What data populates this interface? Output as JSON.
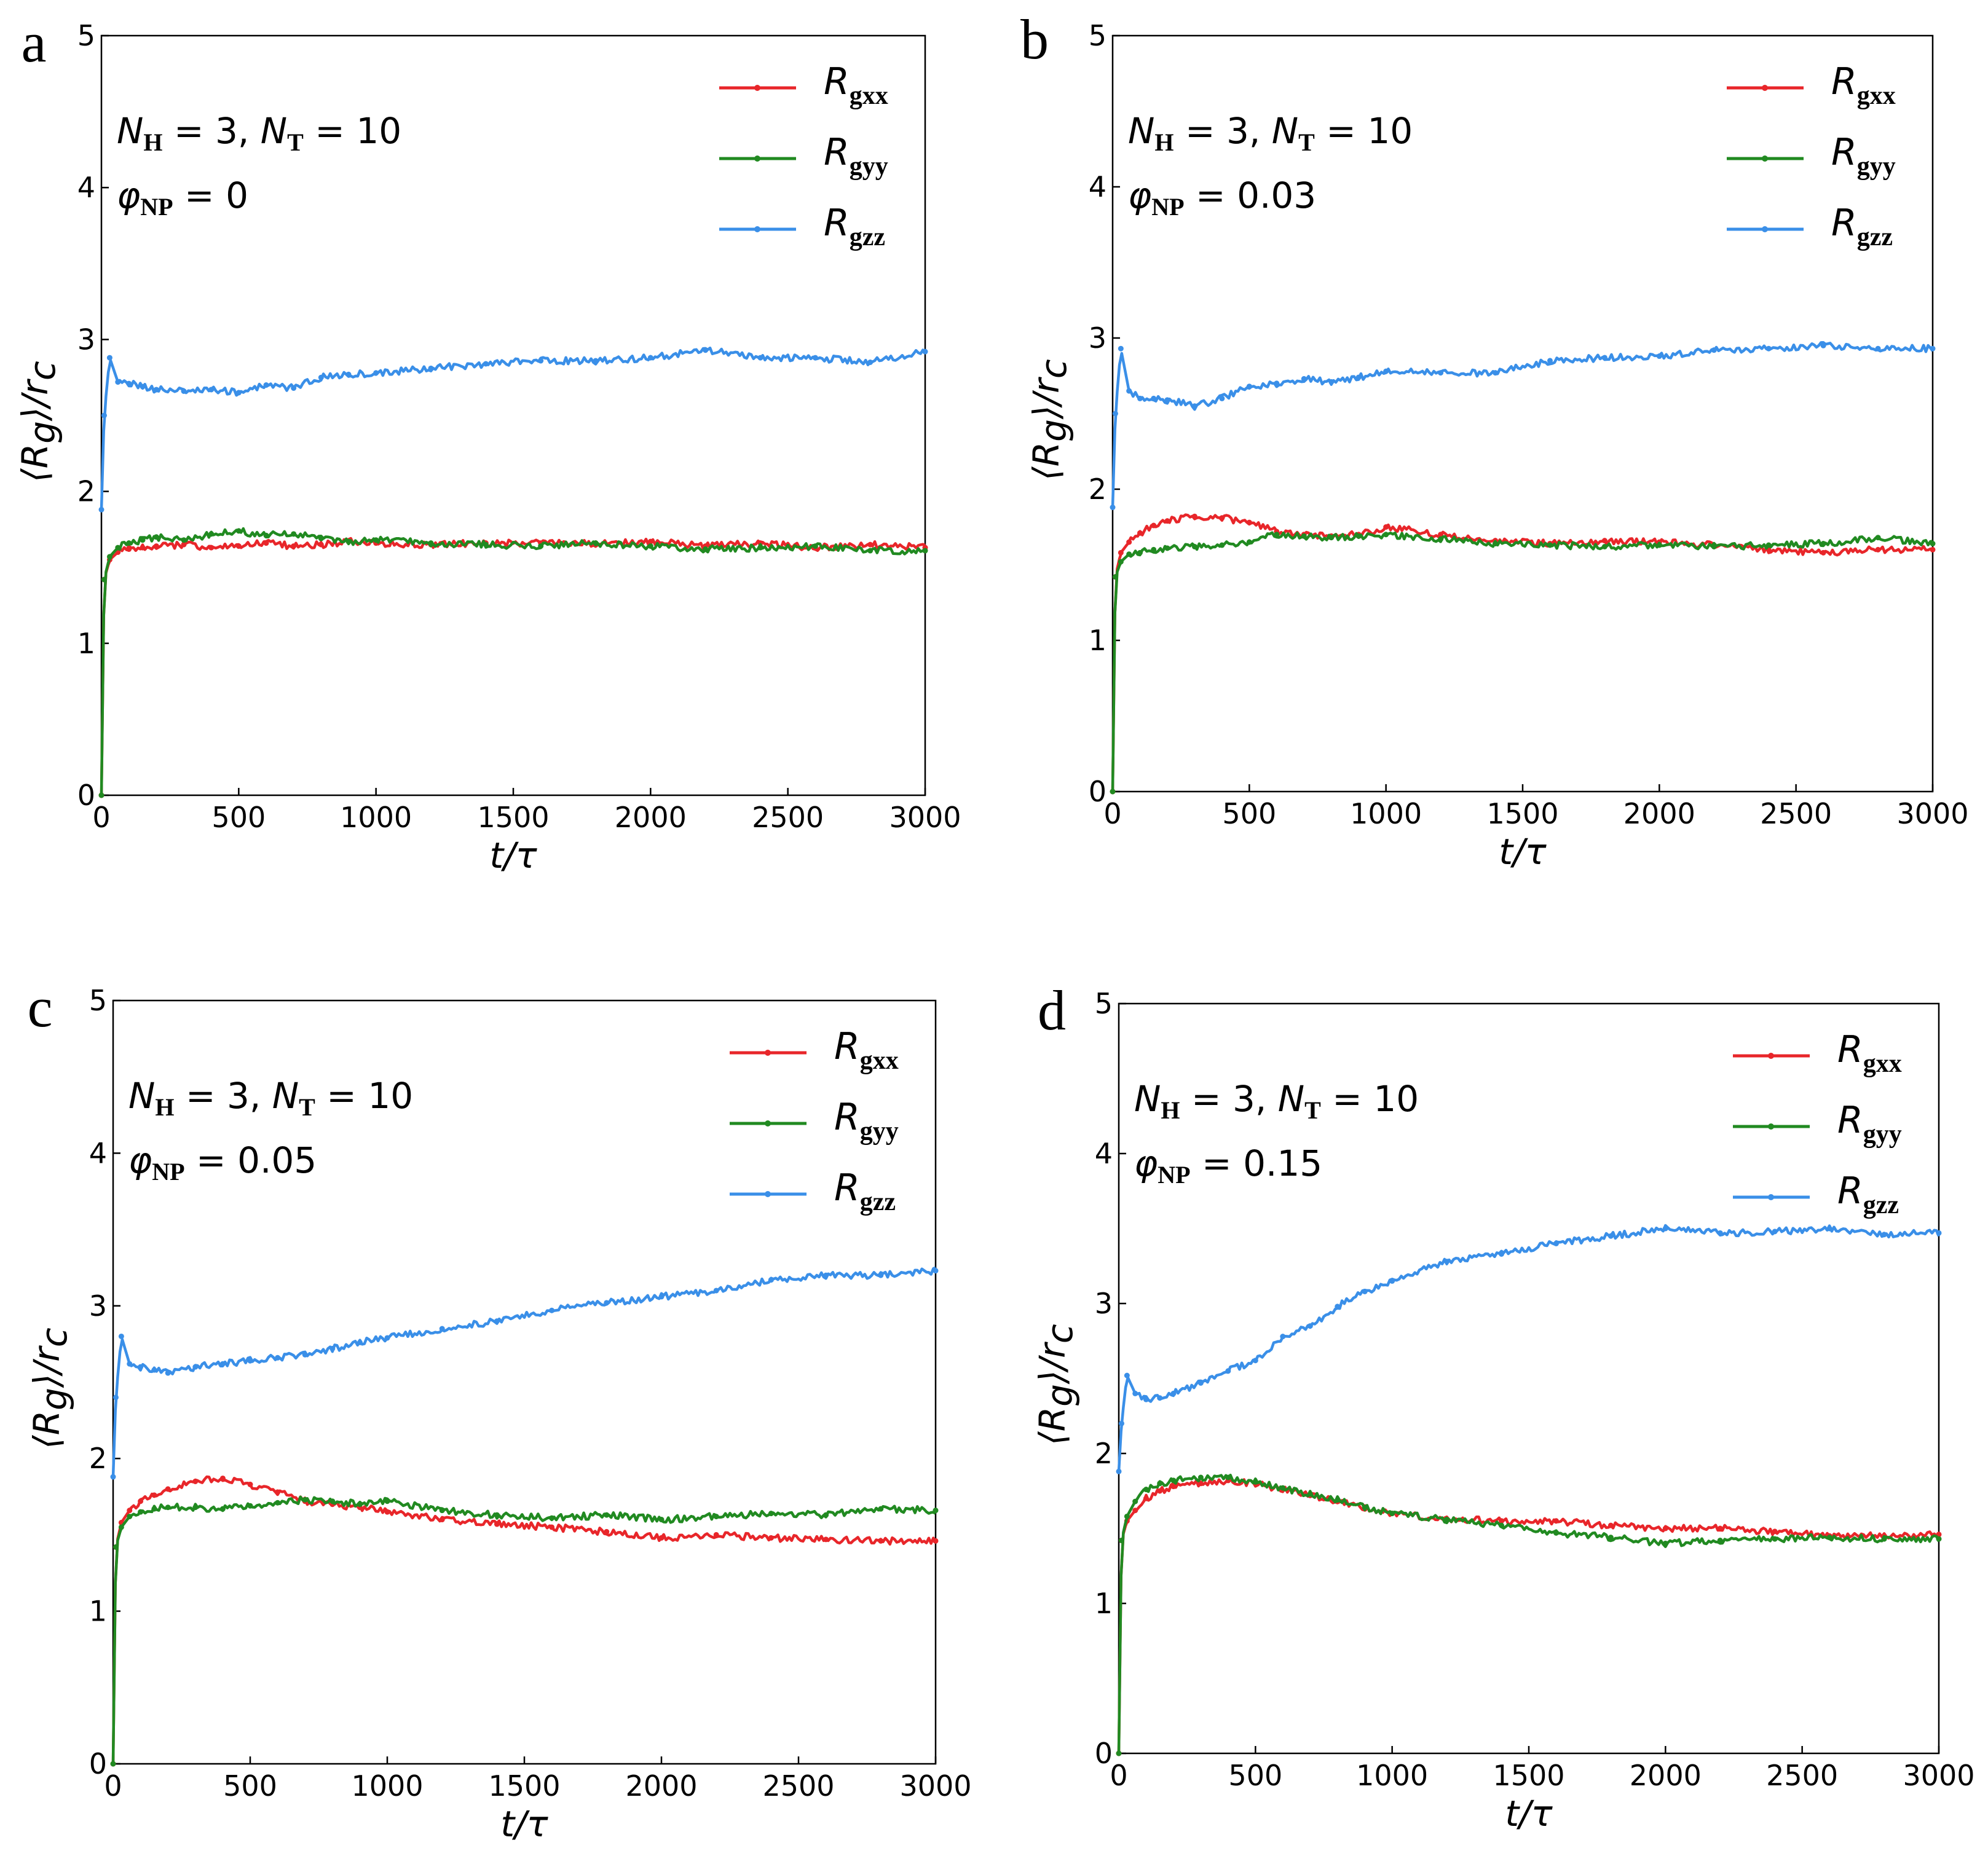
{
  "figure": {
    "ylabel": "⟨R_g⟩/r_c",
    "xlabel": "t/τ",
    "annotation_line1": "N_H = 3, N_T = 10"
  },
  "colors": {
    "Rgxx": "#e8262a",
    "Rgyy": "#218a21",
    "Rgzz": "#3a8fe8"
  },
  "chart_data": [
    {
      "panel": "a",
      "type": "line",
      "phi_text": "0",
      "xlim": [
        0,
        3000
      ],
      "ylim": [
        0,
        5
      ],
      "xticks": [
        "0",
        "500",
        "1000",
        "1500",
        "2000",
        "2500",
        "3000"
      ],
      "yticks": [
        "0",
        "1",
        "2",
        "3",
        "4",
        "5"
      ],
      "xlabel": "t/τ",
      "ylabel": "⟨R_g⟩/r_c",
      "legend": [
        "Rgxx",
        "Rgyy",
        "Rgzz"
      ],
      "x": [
        0,
        10,
        30,
        60,
        100,
        150,
        200,
        300,
        400,
        500,
        600,
        700,
        800,
        900,
        1000,
        1200,
        1400,
        1600,
        1800,
        2000,
        2200,
        2400,
        2600,
        2800,
        3000
      ],
      "series": [
        {
          "name": "Rgxx",
          "values": [
            0.0,
            1.42,
            1.55,
            1.6,
            1.62,
            1.63,
            1.64,
            1.65,
            1.63,
            1.64,
            1.66,
            1.64,
            1.65,
            1.67,
            1.66,
            1.65,
            1.66,
            1.66,
            1.66,
            1.67,
            1.64,
            1.66,
            1.63,
            1.65,
            1.63
          ]
        },
        {
          "name": "Rgyy",
          "values": [
            0.0,
            1.42,
            1.57,
            1.63,
            1.66,
            1.68,
            1.7,
            1.68,
            1.72,
            1.74,
            1.71,
            1.72,
            1.69,
            1.67,
            1.68,
            1.66,
            1.65,
            1.64,
            1.66,
            1.64,
            1.62,
            1.63,
            1.64,
            1.61,
            1.61
          ]
        },
        {
          "name": "Rgzz",
          "values": [
            1.88,
            2.5,
            2.88,
            2.72,
            2.71,
            2.69,
            2.67,
            2.66,
            2.67,
            2.65,
            2.7,
            2.68,
            2.75,
            2.77,
            2.78,
            2.81,
            2.84,
            2.86,
            2.86,
            2.88,
            2.93,
            2.88,
            2.88,
            2.85,
            2.92
          ]
        }
      ]
    },
    {
      "panel": "b",
      "type": "line",
      "phi_text": "0.03",
      "xlim": [
        0,
        3000
      ],
      "ylim": [
        0,
        5
      ],
      "xticks": [
        "0",
        "500",
        "1000",
        "1500",
        "2000",
        "2500",
        "3000"
      ],
      "yticks": [
        "0",
        "1",
        "2",
        "3",
        "4",
        "5"
      ],
      "xlabel": "t/τ",
      "ylabel": "⟨R_g⟩/r_c",
      "legend": [
        "Rgxx",
        "Rgyy",
        "Rgzz"
      ],
      "x": [
        0,
        10,
        30,
        60,
        100,
        150,
        200,
        300,
        400,
        500,
        600,
        700,
        800,
        900,
        1000,
        1200,
        1400,
        1600,
        1800,
        2000,
        2200,
        2400,
        2600,
        2800,
        3000
      ],
      "series": [
        {
          "name": "Rgxx",
          "values": [
            0.0,
            1.42,
            1.58,
            1.65,
            1.71,
            1.76,
            1.79,
            1.82,
            1.81,
            1.78,
            1.72,
            1.7,
            1.69,
            1.7,
            1.75,
            1.7,
            1.66,
            1.64,
            1.66,
            1.65,
            1.63,
            1.6,
            1.58,
            1.6,
            1.6
          ]
        },
        {
          "name": "Rgyy",
          "values": [
            0.0,
            1.42,
            1.52,
            1.57,
            1.58,
            1.6,
            1.61,
            1.62,
            1.63,
            1.65,
            1.7,
            1.69,
            1.68,
            1.69,
            1.7,
            1.67,
            1.64,
            1.63,
            1.62,
            1.63,
            1.62,
            1.63,
            1.64,
            1.68,
            1.64
          ]
        },
        {
          "name": "Rgzz",
          "values": [
            1.88,
            2.5,
            2.93,
            2.65,
            2.6,
            2.6,
            2.59,
            2.55,
            2.6,
            2.68,
            2.7,
            2.73,
            2.71,
            2.74,
            2.78,
            2.77,
            2.77,
            2.85,
            2.87,
            2.88,
            2.92,
            2.93,
            2.95,
            2.93,
            2.93
          ]
        }
      ]
    },
    {
      "panel": "c",
      "type": "line",
      "phi_text": "0.05",
      "xlim": [
        0,
        3000
      ],
      "ylim": [
        0,
        5
      ],
      "xticks": [
        "0",
        "500",
        "1000",
        "1500",
        "2000",
        "2500",
        "3000"
      ],
      "yticks": [
        "0",
        "1",
        "2",
        "3",
        "4",
        "5"
      ],
      "xlabel": "t/τ",
      "ylabel": "⟨R_g⟩/r_c",
      "legend": [
        "Rgxx",
        "Rgyy",
        "Rgzz"
      ],
      "x": [
        0,
        10,
        30,
        60,
        100,
        150,
        200,
        300,
        400,
        500,
        600,
        700,
        800,
        900,
        1000,
        1200,
        1400,
        1600,
        1800,
        2000,
        2200,
        2400,
        2600,
        2800,
        3000
      ],
      "series": [
        {
          "name": "Rgxx",
          "values": [
            0.0,
            1.42,
            1.58,
            1.66,
            1.72,
            1.76,
            1.8,
            1.85,
            1.87,
            1.83,
            1.78,
            1.72,
            1.7,
            1.68,
            1.65,
            1.6,
            1.57,
            1.55,
            1.52,
            1.48,
            1.5,
            1.48,
            1.47,
            1.46,
            1.46
          ]
        },
        {
          "name": "Rgyy",
          "values": [
            0.0,
            1.42,
            1.55,
            1.62,
            1.65,
            1.67,
            1.68,
            1.68,
            1.67,
            1.69,
            1.71,
            1.73,
            1.72,
            1.7,
            1.72,
            1.66,
            1.63,
            1.61,
            1.63,
            1.6,
            1.62,
            1.64,
            1.63,
            1.67,
            1.66
          ]
        },
        {
          "name": "Rgzz",
          "values": [
            1.88,
            2.4,
            2.8,
            2.62,
            2.6,
            2.58,
            2.56,
            2.6,
            2.62,
            2.64,
            2.66,
            2.68,
            2.72,
            2.76,
            2.79,
            2.85,
            2.9,
            2.97,
            3.02,
            3.06,
            3.1,
            3.17,
            3.2,
            3.2,
            3.23
          ]
        }
      ]
    },
    {
      "panel": "d",
      "type": "line",
      "phi_text": "0.15",
      "xlim": [
        0,
        3000
      ],
      "ylim": [
        0,
        5
      ],
      "xticks": [
        "0",
        "500",
        "1000",
        "1500",
        "2000",
        "2500",
        "3000"
      ],
      "yticks": [
        "0",
        "1",
        "2",
        "3",
        "4",
        "5"
      ],
      "xlabel": "t/τ",
      "ylabel": "⟨R_g⟩/r_c",
      "legend": [
        "Rgxx",
        "Rgyy",
        "Rgzz"
      ],
      "x": [
        0,
        10,
        30,
        60,
        100,
        150,
        200,
        300,
        400,
        500,
        600,
        700,
        800,
        900,
        1000,
        1200,
        1400,
        1600,
        1800,
        2000,
        2200,
        2400,
        2600,
        2800,
        3000
      ],
      "series": [
        {
          "name": "Rgxx",
          "values": [
            0.0,
            1.42,
            1.55,
            1.62,
            1.7,
            1.75,
            1.78,
            1.8,
            1.82,
            1.8,
            1.76,
            1.72,
            1.68,
            1.63,
            1.6,
            1.56,
            1.55,
            1.55,
            1.52,
            1.5,
            1.5,
            1.48,
            1.45,
            1.45,
            1.46
          ]
        },
        {
          "name": "Rgyy",
          "values": [
            0.0,
            1.42,
            1.58,
            1.68,
            1.76,
            1.8,
            1.82,
            1.84,
            1.84,
            1.81,
            1.77,
            1.73,
            1.69,
            1.64,
            1.6,
            1.56,
            1.52,
            1.47,
            1.44,
            1.4,
            1.42,
            1.43,
            1.44,
            1.43,
            1.43
          ]
        },
        {
          "name": "Rgzz",
          "values": [
            1.88,
            2.2,
            2.52,
            2.4,
            2.36,
            2.37,
            2.4,
            2.47,
            2.55,
            2.62,
            2.78,
            2.85,
            2.98,
            3.08,
            3.15,
            3.28,
            3.33,
            3.4,
            3.45,
            3.5,
            3.47,
            3.48,
            3.5,
            3.46,
            3.47
          ]
        }
      ]
    }
  ]
}
